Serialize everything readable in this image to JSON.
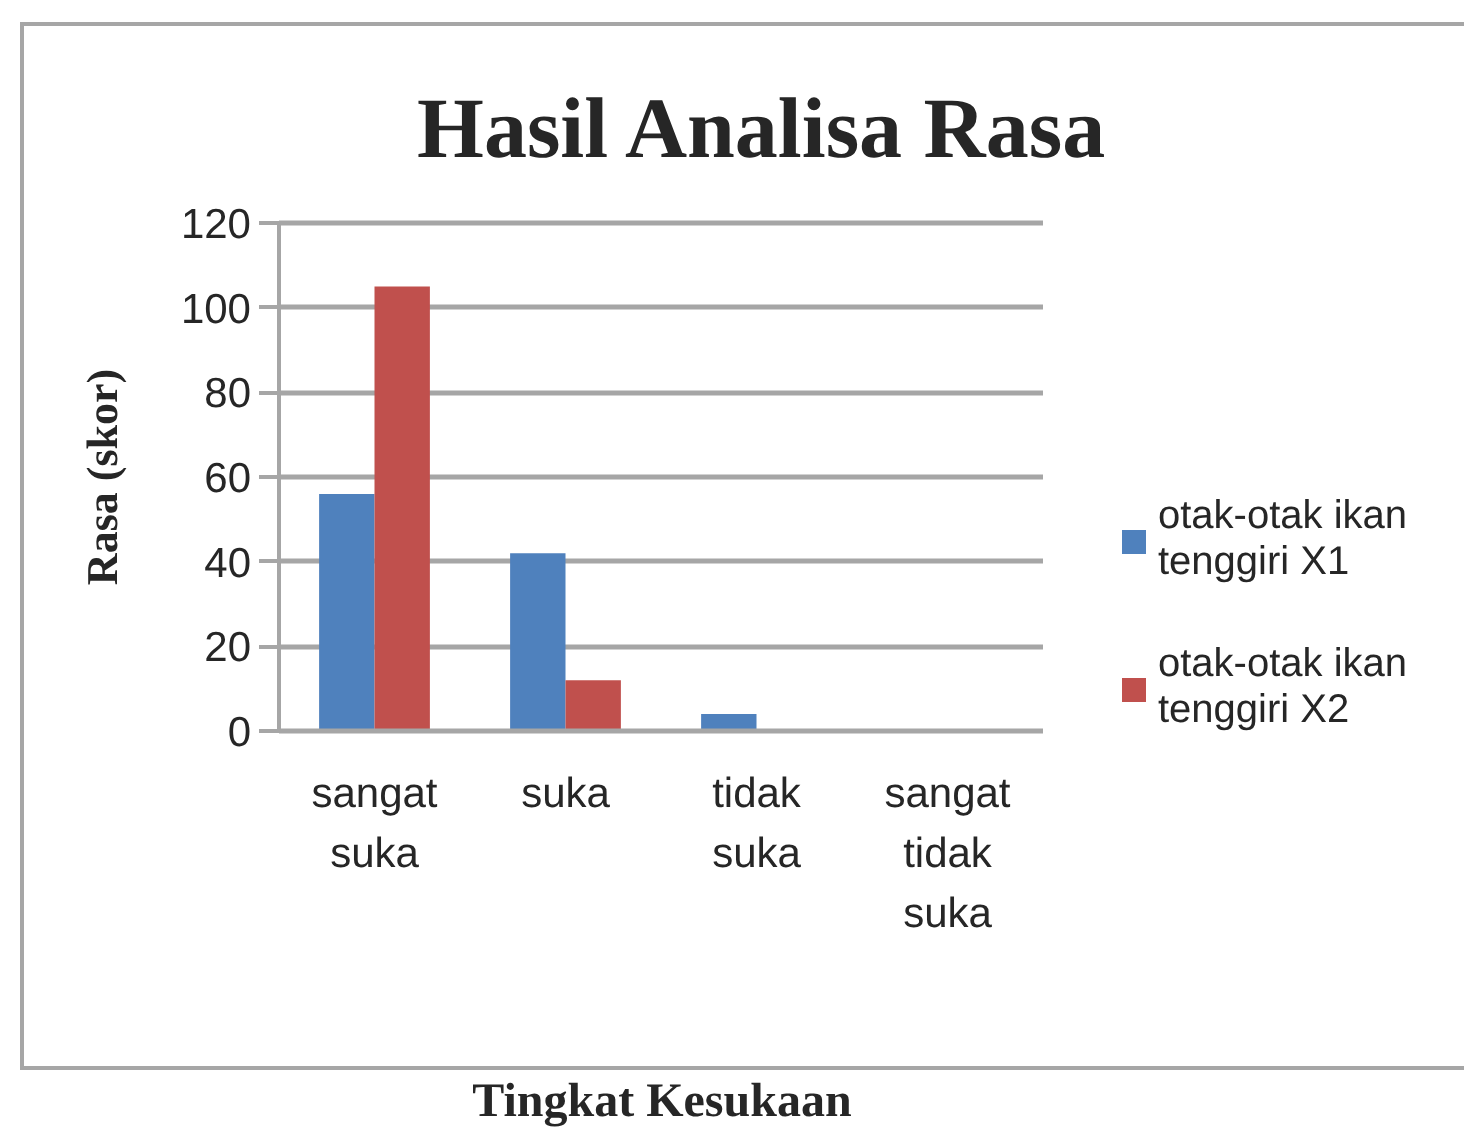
{
  "chart_data": {
    "type": "bar",
    "title": "Hasil Analisa Rasa",
    "xlabel": "Tingkat Kesukaan",
    "ylabel": "Rasa (skor)",
    "categories": [
      "sangat suka",
      "suka",
      "tidak suka",
      "sangat tidak suka"
    ],
    "series": [
      {
        "name": "otak-otak ikan tenggiri X1",
        "color": "#4f81bd",
        "values": [
          56,
          42,
          4,
          0
        ]
      },
      {
        "name": "otak-otak ikan tenggiri X2",
        "color": "#c0504d",
        "values": [
          105,
          12,
          0,
          0
        ]
      }
    ],
    "ylim": [
      0,
      120
    ],
    "yticks": [
      0,
      20,
      40,
      60,
      80,
      100,
      120
    ],
    "grid": "y",
    "legend": "right"
  }
}
